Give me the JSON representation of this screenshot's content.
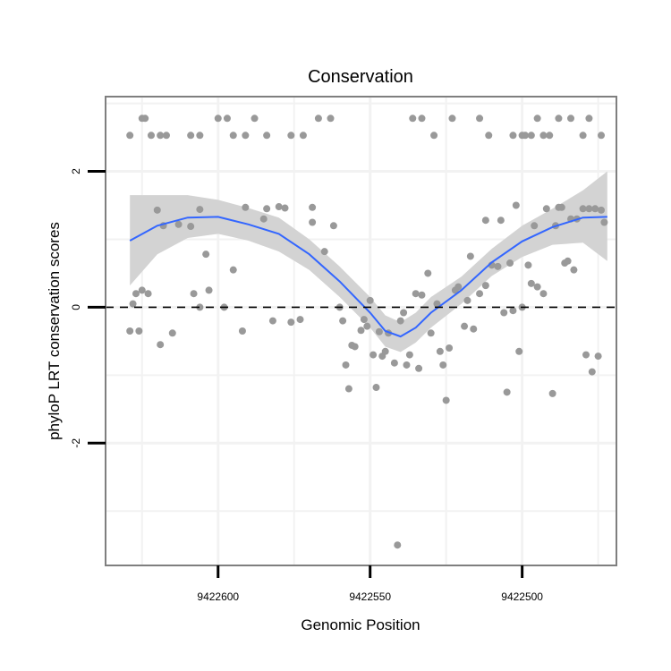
{
  "chart_data": {
    "type": "scatter",
    "title": "Conservation",
    "xlabel": "Genomic Position",
    "ylabel": "phyloP LRT conservation scores",
    "x_reversed": true,
    "xlim": [
      9422637,
      9422469
    ],
    "ylim": [
      -3.8,
      3.1
    ],
    "x_ticks": [
      9422600,
      9422550,
      9422500
    ],
    "x_tick_labels": [
      "9422600",
      "9422550",
      "9422500"
    ],
    "y_ticks": [
      2,
      0,
      -2
    ],
    "y_tick_labels": [
      "2",
      "0",
      "-2"
    ],
    "reference_line": {
      "y": 0,
      "style": "dashed"
    },
    "grid": true,
    "colors": {
      "points": "#999999",
      "smooth_line": "#3366ff",
      "confidence_band": "#d3d3d3",
      "panel_border": "#7f7f7f",
      "grid": "#f2f2f2",
      "reference_line": "#000000"
    },
    "points": [
      {
        "x": 9422629,
        "y": 2.53
      },
      {
        "x": 9422625,
        "y": 2.78
      },
      {
        "x": 9422624,
        "y": 2.78
      },
      {
        "x": 9422622,
        "y": 2.53
      },
      {
        "x": 9422619,
        "y": 2.53
      },
      {
        "x": 9422617,
        "y": 2.53
      },
      {
        "x": 9422609,
        "y": 2.53
      },
      {
        "x": 9422606,
        "y": 2.53
      },
      {
        "x": 9422600,
        "y": 2.78
      },
      {
        "x": 9422597,
        "y": 2.78
      },
      {
        "x": 9422595,
        "y": 2.53
      },
      {
        "x": 9422591,
        "y": 2.53
      },
      {
        "x": 9422588,
        "y": 2.78
      },
      {
        "x": 9422584,
        "y": 2.53
      },
      {
        "x": 9422576,
        "y": 2.53
      },
      {
        "x": 9422572,
        "y": 2.53
      },
      {
        "x": 9422567,
        "y": 2.78
      },
      {
        "x": 9422563,
        "y": 2.78
      },
      {
        "x": 9422620,
        "y": 1.43
      },
      {
        "x": 9422618,
        "y": 1.2
      },
      {
        "x": 9422613,
        "y": 1.22
      },
      {
        "x": 9422606,
        "y": 1.44
      },
      {
        "x": 9422591,
        "y": 1.47
      },
      {
        "x": 9422584,
        "y": 1.45
      },
      {
        "x": 9422580,
        "y": 1.48
      },
      {
        "x": 9422578,
        "y": 1.46
      },
      {
        "x": 9422569,
        "y": 1.47
      },
      {
        "x": 9422569,
        "y": 1.25
      },
      {
        "x": 9422609,
        "y": 1.19
      },
      {
        "x": 9422585,
        "y": 1.3
      },
      {
        "x": 9422562,
        "y": 1.2
      },
      {
        "x": 9422628,
        "y": 0.05
      },
      {
        "x": 9422627,
        "y": 0.2
      },
      {
        "x": 9422625,
        "y": 0.25
      },
      {
        "x": 9422623,
        "y": 0.2
      },
      {
        "x": 9422608,
        "y": 0.2
      },
      {
        "x": 9422606,
        "y": 0.0
      },
      {
        "x": 9422603,
        "y": 0.25
      },
      {
        "x": 9422598,
        "y": 0.0
      },
      {
        "x": 9422604,
        "y": 0.78
      },
      {
        "x": 9422595,
        "y": 0.55
      },
      {
        "x": 9422592,
        "y": -0.35
      },
      {
        "x": 9422629,
        "y": -0.35
      },
      {
        "x": 9422626,
        "y": -0.35
      },
      {
        "x": 9422619,
        "y": -0.55
      },
      {
        "x": 9422615,
        "y": -0.38
      },
      {
        "x": 9422582,
        "y": -0.2
      },
      {
        "x": 9422576,
        "y": -0.22
      },
      {
        "x": 9422573,
        "y": -0.18
      },
      {
        "x": 9422565,
        "y": 0.82
      },
      {
        "x": 9422560,
        "y": 0.0
      },
      {
        "x": 9422559,
        "y": -0.2
      },
      {
        "x": 9422558,
        "y": -0.85
      },
      {
        "x": 9422557,
        "y": -1.2
      },
      {
        "x": 9422556,
        "y": -0.56
      },
      {
        "x": 9422555,
        "y": -0.58
      },
      {
        "x": 9422553,
        "y": -0.34
      },
      {
        "x": 9422552,
        "y": -0.18
      },
      {
        "x": 9422551,
        "y": -0.28
      },
      {
        "x": 9422550,
        "y": 0.1
      },
      {
        "x": 9422549,
        "y": -0.7
      },
      {
        "x": 9422548,
        "y": -1.18
      },
      {
        "x": 9422547,
        "y": -0.36
      },
      {
        "x": 9422546,
        "y": -0.72
      },
      {
        "x": 9422545,
        "y": -0.65
      },
      {
        "x": 9422544,
        "y": -0.38
      },
      {
        "x": 9422542,
        "y": -0.82
      },
      {
        "x": 9422541,
        "y": -3.5
      },
      {
        "x": 9422540,
        "y": -0.2
      },
      {
        "x": 9422539,
        "y": -0.08
      },
      {
        "x": 9422538,
        "y": -0.85
      },
      {
        "x": 9422537,
        "y": -0.7
      },
      {
        "x": 9422535,
        "y": 0.2
      },
      {
        "x": 9422534,
        "y": -0.9
      },
      {
        "x": 9422533,
        "y": 0.18
      },
      {
        "x": 9422531,
        "y": 0.5
      },
      {
        "x": 9422530,
        "y": -0.38
      },
      {
        "x": 9422528,
        "y": 0.05
      },
      {
        "x": 9422527,
        "y": -0.65
      },
      {
        "x": 9422526,
        "y": -0.85
      },
      {
        "x": 9422525,
        "y": -1.37
      },
      {
        "x": 9422524,
        "y": -0.6
      },
      {
        "x": 9422522,
        "y": 0.25
      },
      {
        "x": 9422521,
        "y": 0.3
      },
      {
        "x": 9422519,
        "y": -0.28
      },
      {
        "x": 9422518,
        "y": 0.1
      },
      {
        "x": 9422517,
        "y": 0.75
      },
      {
        "x": 9422516,
        "y": -0.32
      },
      {
        "x": 9422514,
        "y": 0.2
      },
      {
        "x": 9422512,
        "y": 1.28
      },
      {
        "x": 9422512,
        "y": 0.32
      },
      {
        "x": 9422510,
        "y": 0.62
      },
      {
        "x": 9422508,
        "y": 0.6
      },
      {
        "x": 9422507,
        "y": 1.28
      },
      {
        "x": 9422506,
        "y": -0.08
      },
      {
        "x": 9422505,
        "y": -1.25
      },
      {
        "x": 9422504,
        "y": 0.65
      },
      {
        "x": 9422503,
        "y": -0.05
      },
      {
        "x": 9422502,
        "y": 1.5
      },
      {
        "x": 9422501,
        "y": -0.65
      },
      {
        "x": 9422500,
        "y": 0.0
      },
      {
        "x": 9422498,
        "y": 0.62
      },
      {
        "x": 9422497,
        "y": 0.35
      },
      {
        "x": 9422496,
        "y": 1.2
      },
      {
        "x": 9422495,
        "y": 0.3
      },
      {
        "x": 9422493,
        "y": 0.2
      },
      {
        "x": 9422492,
        "y": 1.45
      },
      {
        "x": 9422490,
        "y": -1.27
      },
      {
        "x": 9422489,
        "y": 1.2
      },
      {
        "x": 9422488,
        "y": 1.47
      },
      {
        "x": 9422487,
        "y": 1.47
      },
      {
        "x": 9422486,
        "y": 0.65
      },
      {
        "x": 9422485,
        "y": 0.68
      },
      {
        "x": 9422484,
        "y": 1.3
      },
      {
        "x": 9422483,
        "y": 0.55
      },
      {
        "x": 9422482,
        "y": 1.3
      },
      {
        "x": 9422480,
        "y": 1.45
      },
      {
        "x": 9422479,
        "y": -0.7
      },
      {
        "x": 9422478,
        "y": 1.45
      },
      {
        "x": 9422477,
        "y": -0.95
      },
      {
        "x": 9422476,
        "y": 1.45
      },
      {
        "x": 9422475,
        "y": -0.72
      },
      {
        "x": 9422474,
        "y": 1.43
      },
      {
        "x": 9422473,
        "y": 1.25
      },
      {
        "x": 9422536,
        "y": 2.78
      },
      {
        "x": 9422533,
        "y": 2.78
      },
      {
        "x": 9422529,
        "y": 2.53
      },
      {
        "x": 9422523,
        "y": 2.78
      },
      {
        "x": 9422514,
        "y": 2.78
      },
      {
        "x": 9422511,
        "y": 2.53
      },
      {
        "x": 9422503,
        "y": 2.53
      },
      {
        "x": 9422500,
        "y": 2.53
      },
      {
        "x": 9422499,
        "y": 2.53
      },
      {
        "x": 9422497,
        "y": 2.53
      },
      {
        "x": 9422495,
        "y": 2.78
      },
      {
        "x": 9422493,
        "y": 2.53
      },
      {
        "x": 9422491,
        "y": 2.53
      },
      {
        "x": 9422488,
        "y": 2.78
      },
      {
        "x": 9422484,
        "y": 2.78
      },
      {
        "x": 9422480,
        "y": 2.53
      },
      {
        "x": 9422478,
        "y": 2.78
      },
      {
        "x": 9422474,
        "y": 2.53
      }
    ],
    "smooth_line": {
      "x": [
        9422629,
        9422620,
        9422610,
        9422600,
        9422590,
        9422580,
        9422570,
        9422560,
        9422550,
        9422545,
        9422540,
        9422535,
        9422530,
        9422520,
        9422510,
        9422500,
        9422490,
        9422480,
        9422472
      ],
      "y": [
        0.98,
        1.2,
        1.32,
        1.33,
        1.22,
        1.08,
        0.78,
        0.38,
        -0.08,
        -0.35,
        -0.43,
        -0.3,
        -0.08,
        0.25,
        0.66,
        0.97,
        1.18,
        1.32,
        1.33
      ]
    },
    "confidence_band": {
      "x": [
        9422629,
        9422620,
        9422610,
        9422600,
        9422590,
        9422580,
        9422570,
        9422560,
        9422550,
        9422545,
        9422540,
        9422535,
        9422530,
        9422520,
        9422510,
        9422500,
        9422490,
        9422480,
        9422472
      ],
      "upper": [
        1.65,
        1.65,
        1.65,
        1.58,
        1.46,
        1.32,
        1.0,
        0.6,
        0.15,
        -0.12,
        -0.22,
        -0.08,
        0.15,
        0.45,
        0.86,
        1.2,
        1.45,
        1.72,
        2.0
      ],
      "lower": [
        0.32,
        0.78,
        1.02,
        1.08,
        0.98,
        0.82,
        0.55,
        0.15,
        -0.3,
        -0.58,
        -0.66,
        -0.52,
        -0.3,
        0.05,
        0.46,
        0.74,
        0.92,
        0.95,
        0.68
      ]
    }
  }
}
